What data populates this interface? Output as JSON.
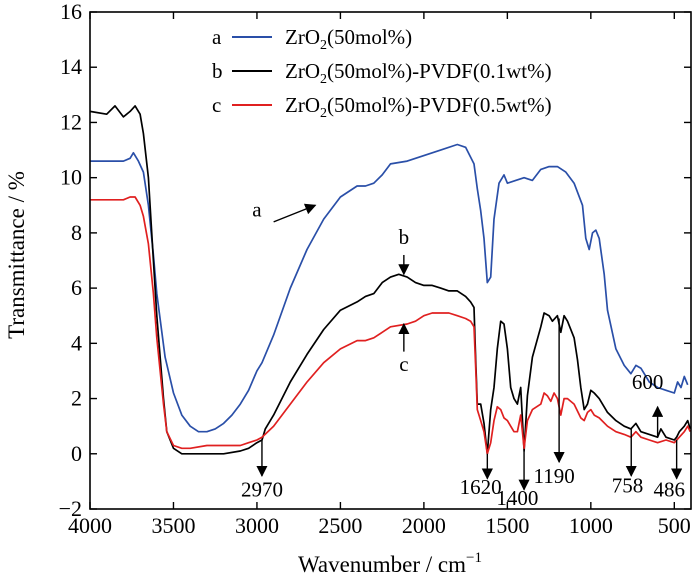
{
  "chart_data": {
    "type": "line",
    "title": "",
    "xlabel": "Wavenumber / cm",
    "xlabel_sup": "−1",
    "ylabel": "Transmittance / %",
    "xlim": [
      4000,
      400
    ],
    "ylim": [
      -2,
      16
    ],
    "x_reversed": true,
    "grid": false,
    "legend_position": "top-center",
    "x_ticks": [
      "4000",
      "3500",
      "3000",
      "2500",
      "2000",
      "1500",
      "1000",
      "500"
    ],
    "y_ticks": [
      "−2",
      "0",
      "2",
      "4",
      "6",
      "8",
      "10",
      "12",
      "14",
      "16"
    ],
    "series": [
      {
        "key": "a",
        "name_prefix": "ZrO",
        "name_sub": "2",
        "name_suffix": "(50mol%)",
        "color": "#2a4fa8",
        "points": [
          [
            4000,
            10.6
          ],
          [
            3800,
            10.6
          ],
          [
            3760,
            10.7
          ],
          [
            3740,
            10.9
          ],
          [
            3710,
            10.6
          ],
          [
            3680,
            10.2
          ],
          [
            3650,
            9.0
          ],
          [
            3620,
            7.2
          ],
          [
            3600,
            5.8
          ],
          [
            3550,
            3.5
          ],
          [
            3500,
            2.2
          ],
          [
            3450,
            1.4
          ],
          [
            3400,
            1.0
          ],
          [
            3350,
            0.8
          ],
          [
            3300,
            0.8
          ],
          [
            3250,
            0.9
          ],
          [
            3200,
            1.1
          ],
          [
            3150,
            1.4
          ],
          [
            3100,
            1.8
          ],
          [
            3050,
            2.3
          ],
          [
            3000,
            3.0
          ],
          [
            2970,
            3.3
          ],
          [
            2900,
            4.3
          ],
          [
            2800,
            6.0
          ],
          [
            2700,
            7.4
          ],
          [
            2600,
            8.5
          ],
          [
            2500,
            9.3
          ],
          [
            2400,
            9.7
          ],
          [
            2350,
            9.7
          ],
          [
            2300,
            9.8
          ],
          [
            2250,
            10.1
          ],
          [
            2200,
            10.5
          ],
          [
            2100,
            10.6
          ],
          [
            2000,
            10.8
          ],
          [
            1900,
            11.0
          ],
          [
            1800,
            11.2
          ],
          [
            1750,
            11.1
          ],
          [
            1700,
            10.5
          ],
          [
            1680,
            9.6
          ],
          [
            1660,
            8.8
          ],
          [
            1640,
            7.8
          ],
          [
            1620,
            6.2
          ],
          [
            1600,
            6.4
          ],
          [
            1580,
            8.5
          ],
          [
            1550,
            9.8
          ],
          [
            1520,
            10.1
          ],
          [
            1500,
            9.8
          ],
          [
            1450,
            9.9
          ],
          [
            1400,
            10.0
          ],
          [
            1350,
            9.9
          ],
          [
            1300,
            10.3
          ],
          [
            1250,
            10.4
          ],
          [
            1200,
            10.4
          ],
          [
            1150,
            10.2
          ],
          [
            1100,
            9.8
          ],
          [
            1050,
            9.0
          ],
          [
            1030,
            7.8
          ],
          [
            1010,
            7.4
          ],
          [
            990,
            8.0
          ],
          [
            970,
            8.1
          ],
          [
            950,
            7.8
          ],
          [
            920,
            6.5
          ],
          [
            900,
            5.2
          ],
          [
            850,
            3.8
          ],
          [
            800,
            3.2
          ],
          [
            760,
            2.9
          ],
          [
            730,
            3.2
          ],
          [
            700,
            3.1
          ],
          [
            650,
            2.6
          ],
          [
            600,
            2.4
          ],
          [
            550,
            2.3
          ],
          [
            500,
            2.2
          ],
          [
            480,
            2.6
          ],
          [
            460,
            2.4
          ],
          [
            440,
            2.8
          ],
          [
            420,
            2.5
          ]
        ]
      },
      {
        "key": "b",
        "name_prefix": "ZrO",
        "name_sub": "2",
        "name_suffix": "(50mol%)-PVDF(0.1wt%)",
        "color": "#000000",
        "points": [
          [
            4000,
            12.4
          ],
          [
            3900,
            12.3
          ],
          [
            3850,
            12.6
          ],
          [
            3800,
            12.2
          ],
          [
            3760,
            12.4
          ],
          [
            3730,
            12.6
          ],
          [
            3700,
            12.3
          ],
          [
            3680,
            11.6
          ],
          [
            3650,
            10.0
          ],
          [
            3620,
            7.0
          ],
          [
            3600,
            5.0
          ],
          [
            3560,
            2.0
          ],
          [
            3540,
            0.8
          ],
          [
            3500,
            0.2
          ],
          [
            3450,
            0.0
          ],
          [
            3400,
            0.0
          ],
          [
            3300,
            0.0
          ],
          [
            3200,
            0.0
          ],
          [
            3100,
            0.1
          ],
          [
            3050,
            0.2
          ],
          [
            3000,
            0.4
          ],
          [
            2970,
            0.5
          ],
          [
            2950,
            0.9
          ],
          [
            2900,
            1.4
          ],
          [
            2800,
            2.6
          ],
          [
            2700,
            3.6
          ],
          [
            2600,
            4.5
          ],
          [
            2500,
            5.2
          ],
          [
            2400,
            5.5
          ],
          [
            2350,
            5.7
          ],
          [
            2300,
            5.8
          ],
          [
            2250,
            6.2
          ],
          [
            2200,
            6.4
          ],
          [
            2150,
            6.5
          ],
          [
            2100,
            6.4
          ],
          [
            2050,
            6.2
          ],
          [
            2000,
            6.1
          ],
          [
            1950,
            6.1
          ],
          [
            1900,
            6.0
          ],
          [
            1850,
            5.9
          ],
          [
            1800,
            5.9
          ],
          [
            1750,
            5.7
          ],
          [
            1720,
            5.5
          ],
          [
            1700,
            5.3
          ],
          [
            1690,
            3.5
          ],
          [
            1680,
            1.8
          ],
          [
            1660,
            1.8
          ],
          [
            1640,
            1.1
          ],
          [
            1620,
            0.0
          ],
          [
            1600,
            1.6
          ],
          [
            1580,
            2.4
          ],
          [
            1560,
            3.8
          ],
          [
            1540,
            4.8
          ],
          [
            1520,
            4.7
          ],
          [
            1500,
            3.8
          ],
          [
            1480,
            2.4
          ],
          [
            1460,
            2.0
          ],
          [
            1440,
            1.8
          ],
          [
            1420,
            2.4
          ],
          [
            1400,
            0.1
          ],
          [
            1380,
            2.1
          ],
          [
            1350,
            3.5
          ],
          [
            1300,
            4.6
          ],
          [
            1280,
            5.1
          ],
          [
            1250,
            5.0
          ],
          [
            1230,
            4.8
          ],
          [
            1200,
            5.0
          ],
          [
            1180,
            4.4
          ],
          [
            1160,
            5.0
          ],
          [
            1140,
            4.8
          ],
          [
            1100,
            4.2
          ],
          [
            1080,
            3.4
          ],
          [
            1060,
            2.4
          ],
          [
            1040,
            1.6
          ],
          [
            1020,
            1.8
          ],
          [
            1000,
            2.3
          ],
          [
            980,
            2.2
          ],
          [
            950,
            2.0
          ],
          [
            900,
            1.5
          ],
          [
            850,
            1.2
          ],
          [
            800,
            1.0
          ],
          [
            760,
            0.9
          ],
          [
            730,
            1.1
          ],
          [
            700,
            0.8
          ],
          [
            650,
            0.7
          ],
          [
            600,
            0.6
          ],
          [
            580,
            0.9
          ],
          [
            550,
            0.6
          ],
          [
            500,
            0.5
          ],
          [
            486,
            0.6
          ],
          [
            470,
            0.8
          ],
          [
            440,
            1.0
          ],
          [
            420,
            1.2
          ],
          [
            405,
            0.9
          ]
        ]
      },
      {
        "key": "c",
        "name_prefix": "ZrO",
        "name_sub": "2",
        "name_suffix": "(50mol%)-PVDF(0.5wt%)",
        "color": "#e02020",
        "points": [
          [
            4000,
            9.2
          ],
          [
            3900,
            9.2
          ],
          [
            3800,
            9.2
          ],
          [
            3760,
            9.3
          ],
          [
            3730,
            9.3
          ],
          [
            3700,
            9.0
          ],
          [
            3680,
            8.6
          ],
          [
            3650,
            7.6
          ],
          [
            3620,
            5.8
          ],
          [
            3600,
            4.2
          ],
          [
            3560,
            1.8
          ],
          [
            3540,
            0.8
          ],
          [
            3500,
            0.3
          ],
          [
            3450,
            0.2
          ],
          [
            3400,
            0.2
          ],
          [
            3300,
            0.3
          ],
          [
            3200,
            0.3
          ],
          [
            3100,
            0.3
          ],
          [
            3050,
            0.4
          ],
          [
            3000,
            0.5
          ],
          [
            2970,
            0.6
          ],
          [
            2900,
            1.0
          ],
          [
            2800,
            1.8
          ],
          [
            2700,
            2.6
          ],
          [
            2600,
            3.3
          ],
          [
            2500,
            3.8
          ],
          [
            2400,
            4.1
          ],
          [
            2350,
            4.1
          ],
          [
            2300,
            4.2
          ],
          [
            2250,
            4.4
          ],
          [
            2200,
            4.6
          ],
          [
            2100,
            4.7
          ],
          [
            2050,
            4.8
          ],
          [
            2000,
            5.0
          ],
          [
            1950,
            5.1
          ],
          [
            1900,
            5.1
          ],
          [
            1850,
            5.1
          ],
          [
            1800,
            5.0
          ],
          [
            1750,
            4.9
          ],
          [
            1720,
            4.8
          ],
          [
            1700,
            4.6
          ],
          [
            1690,
            3.2
          ],
          [
            1680,
            1.6
          ],
          [
            1660,
            1.2
          ],
          [
            1640,
            0.8
          ],
          [
            1620,
            0.0
          ],
          [
            1600,
            0.4
          ],
          [
            1580,
            1.2
          ],
          [
            1560,
            1.7
          ],
          [
            1540,
            1.6
          ],
          [
            1520,
            1.3
          ],
          [
            1500,
            1.2
          ],
          [
            1480,
            1.0
          ],
          [
            1460,
            0.8
          ],
          [
            1440,
            0.8
          ],
          [
            1420,
            1.4
          ],
          [
            1400,
            0.2
          ],
          [
            1380,
            1.2
          ],
          [
            1350,
            1.6
          ],
          [
            1300,
            1.8
          ],
          [
            1280,
            2.2
          ],
          [
            1260,
            2.1
          ],
          [
            1240,
            1.9
          ],
          [
            1220,
            2.2
          ],
          [
            1200,
            2.0
          ],
          [
            1180,
            1.4
          ],
          [
            1160,
            2.0
          ],
          [
            1140,
            2.0
          ],
          [
            1100,
            1.8
          ],
          [
            1060,
            1.3
          ],
          [
            1040,
            1.2
          ],
          [
            1020,
            1.5
          ],
          [
            1000,
            1.6
          ],
          [
            980,
            1.4
          ],
          [
            950,
            1.3
          ],
          [
            900,
            1.0
          ],
          [
            850,
            0.8
          ],
          [
            800,
            0.7
          ],
          [
            760,
            0.6
          ],
          [
            730,
            0.8
          ],
          [
            700,
            0.6
          ],
          [
            650,
            0.5
          ],
          [
            600,
            0.4
          ],
          [
            550,
            0.5
          ],
          [
            500,
            0.4
          ],
          [
            470,
            0.6
          ],
          [
            440,
            0.8
          ],
          [
            420,
            1.0
          ],
          [
            405,
            0.8
          ]
        ]
      }
    ],
    "annotations": [
      {
        "label": "a",
        "text_x": 3000,
        "text_y": 8.6,
        "arrow_from": [
          2900,
          8.4
        ],
        "arrow_to": [
          2650,
          9.0
        ],
        "style": "diagonal"
      },
      {
        "label": "b",
        "text_x": 2120,
        "text_y": 7.6,
        "arrow_from": [
          2120,
          7.2
        ],
        "arrow_to": [
          2120,
          6.5
        ],
        "style": "vertical"
      },
      {
        "label": "c",
        "text_x": 2120,
        "text_y": 3.0,
        "arrow_from": [
          2120,
          3.7
        ],
        "arrow_to": [
          2120,
          4.7
        ],
        "style": "vertical"
      },
      {
        "label": "2970",
        "text_x": 2970,
        "text_y": -1.55,
        "arrow_from": [
          2970,
          0.5
        ],
        "arrow_to": [
          2970,
          -0.8
        ],
        "style": "vertical"
      },
      {
        "label": "1620",
        "text_x": 1660,
        "text_y": -1.45,
        "arrow_from": [
          1620,
          0.0
        ],
        "arrow_to": [
          1620,
          -0.9
        ],
        "style": "vertical"
      },
      {
        "label": "1400",
        "text_x": 1440,
        "text_y": -1.85,
        "arrow_from": [
          1400,
          0.1
        ],
        "arrow_to": [
          1400,
          -1.3
        ],
        "style": "vertical"
      },
      {
        "label": "1190",
        "text_x": 1220,
        "text_y": -1.05,
        "arrow_from": [
          1190,
          4.9
        ],
        "arrow_to": [
          1190,
          -0.3
        ],
        "style": "vertical"
      },
      {
        "label": "758",
        "text_x": 780,
        "text_y": -1.4,
        "arrow_from": [
          758,
          0.9
        ],
        "arrow_to": [
          758,
          -0.8
        ],
        "style": "vertical"
      },
      {
        "label": "600",
        "text_x": 660,
        "text_y": 2.35,
        "arrow_from": [
          600,
          0.6
        ],
        "arrow_to": [
          600,
          1.7
        ],
        "style": "vertical"
      },
      {
        "label": "486",
        "text_x": 530,
        "text_y": -1.55,
        "arrow_from": [
          486,
          0.5
        ],
        "arrow_to": [
          486,
          -0.9
        ],
        "style": "vertical"
      }
    ]
  }
}
